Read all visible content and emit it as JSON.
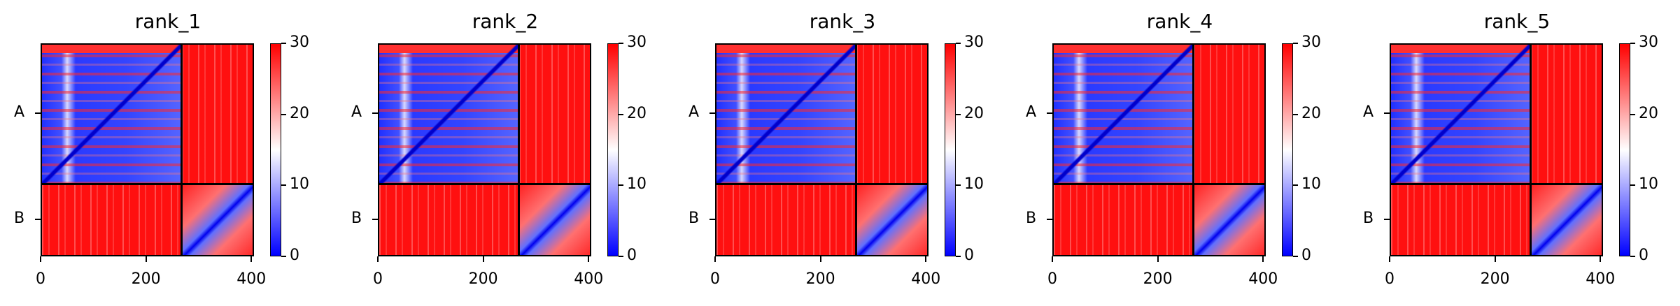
{
  "chart_data": [
    {
      "type": "heatmap",
      "title": "rank_1",
      "chains": [
        "A",
        "B"
      ],
      "chain_boundary": 265,
      "xlim": [
        0,
        405
      ],
      "xticks": [
        0,
        200,
        400
      ],
      "colorbar": {
        "min": 0,
        "max": 30,
        "ticks": [
          0,
          10,
          20,
          30
        ],
        "colors": [
          "#0000ff",
          "#ffffff",
          "#ff0000"
        ]
      }
    },
    {
      "type": "heatmap",
      "title": "rank_2",
      "chains": [
        "A",
        "B"
      ],
      "chain_boundary": 265,
      "xlim": [
        0,
        405
      ],
      "xticks": [
        0,
        200,
        400
      ],
      "colorbar": {
        "min": 0,
        "max": 30,
        "ticks": [
          0,
          10,
          20,
          30
        ],
        "colors": [
          "#0000ff",
          "#ffffff",
          "#ff0000"
        ]
      }
    },
    {
      "type": "heatmap",
      "title": "rank_3",
      "chains": [
        "A",
        "B"
      ],
      "chain_boundary": 265,
      "xlim": [
        0,
        405
      ],
      "xticks": [
        0,
        200,
        400
      ],
      "colorbar": {
        "min": 0,
        "max": 30,
        "ticks": [
          0,
          10,
          20,
          30
        ],
        "colors": [
          "#0000ff",
          "#ffffff",
          "#ff0000"
        ]
      }
    },
    {
      "type": "heatmap",
      "title": "rank_4",
      "chains": [
        "A",
        "B"
      ],
      "chain_boundary": 265,
      "xlim": [
        0,
        405
      ],
      "xticks": [
        0,
        200,
        400
      ],
      "colorbar": {
        "min": 0,
        "max": 30,
        "ticks": [
          0,
          10,
          20,
          30
        ],
        "colors": [
          "#0000ff",
          "#ffffff",
          "#ff0000"
        ]
      }
    },
    {
      "type": "heatmap",
      "title": "rank_5",
      "chains": [
        "A",
        "B"
      ],
      "chain_boundary": 265,
      "xlim": [
        0,
        405
      ],
      "xticks": [
        0,
        200,
        400
      ],
      "colorbar": {
        "min": 0,
        "max": 30,
        "ticks": [
          0,
          10,
          20,
          30
        ],
        "colors": [
          "#0000ff",
          "#ffffff",
          "#ff0000"
        ]
      }
    }
  ]
}
